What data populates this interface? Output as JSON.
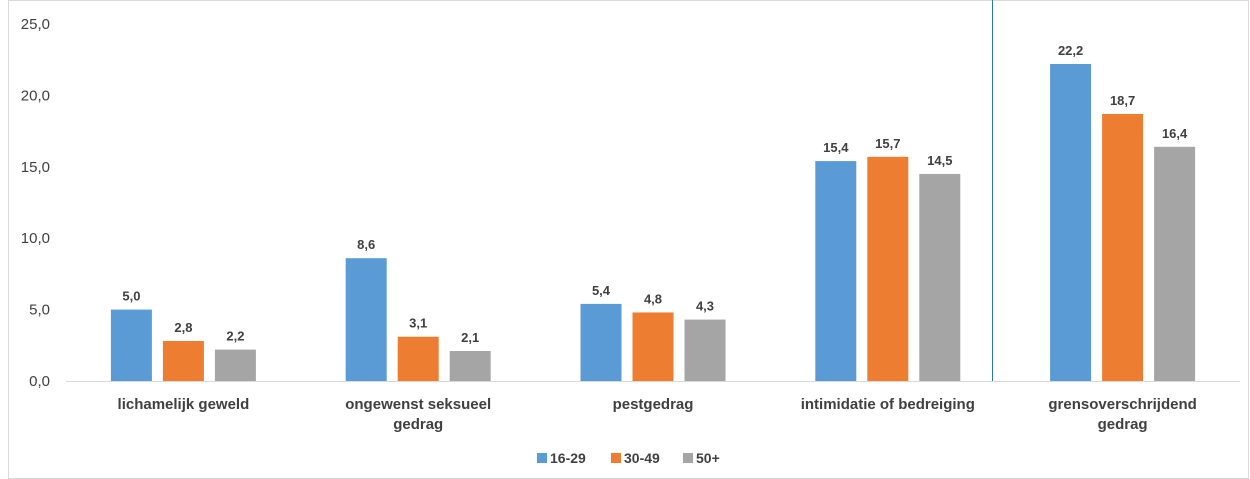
{
  "chart_data": {
    "type": "bar",
    "categories": [
      [
        "lichamelijk geweld"
      ],
      [
        "ongewenst seksueel",
        "gedrag"
      ],
      [
        "pestgedrag"
      ],
      [
        "intimidatie of bedreiging"
      ],
      [
        "grensoverschrijdend",
        "gedrag"
      ]
    ],
    "series": [
      {
        "name": "16-29",
        "color": "#5B9BD5",
        "values": [
          5.0,
          8.6,
          5.4,
          15.4,
          22.2
        ],
        "labels": [
          "5,0",
          "8,6",
          "5,4",
          "15,4",
          "22,2"
        ]
      },
      {
        "name": "30-49",
        "color": "#ED7D31",
        "values": [
          2.8,
          3.1,
          4.8,
          15.7,
          18.7
        ],
        "labels": [
          "2,8",
          "3,1",
          "4,8",
          "15,7",
          "18,7"
        ]
      },
      {
        "name": "50+",
        "color": "#A5A5A5",
        "values": [
          2.2,
          2.1,
          4.3,
          14.5,
          16.4
        ],
        "labels": [
          "2,2",
          "2,1",
          "4,3",
          "14,5",
          "16,4"
        ]
      }
    ],
    "yticks": [
      "0,0",
      "5,0",
      "10,0",
      "15,0",
      "20,0",
      "25,0"
    ],
    "ylim": [
      0,
      25
    ],
    "grid": false,
    "legend": "bottom-center"
  }
}
